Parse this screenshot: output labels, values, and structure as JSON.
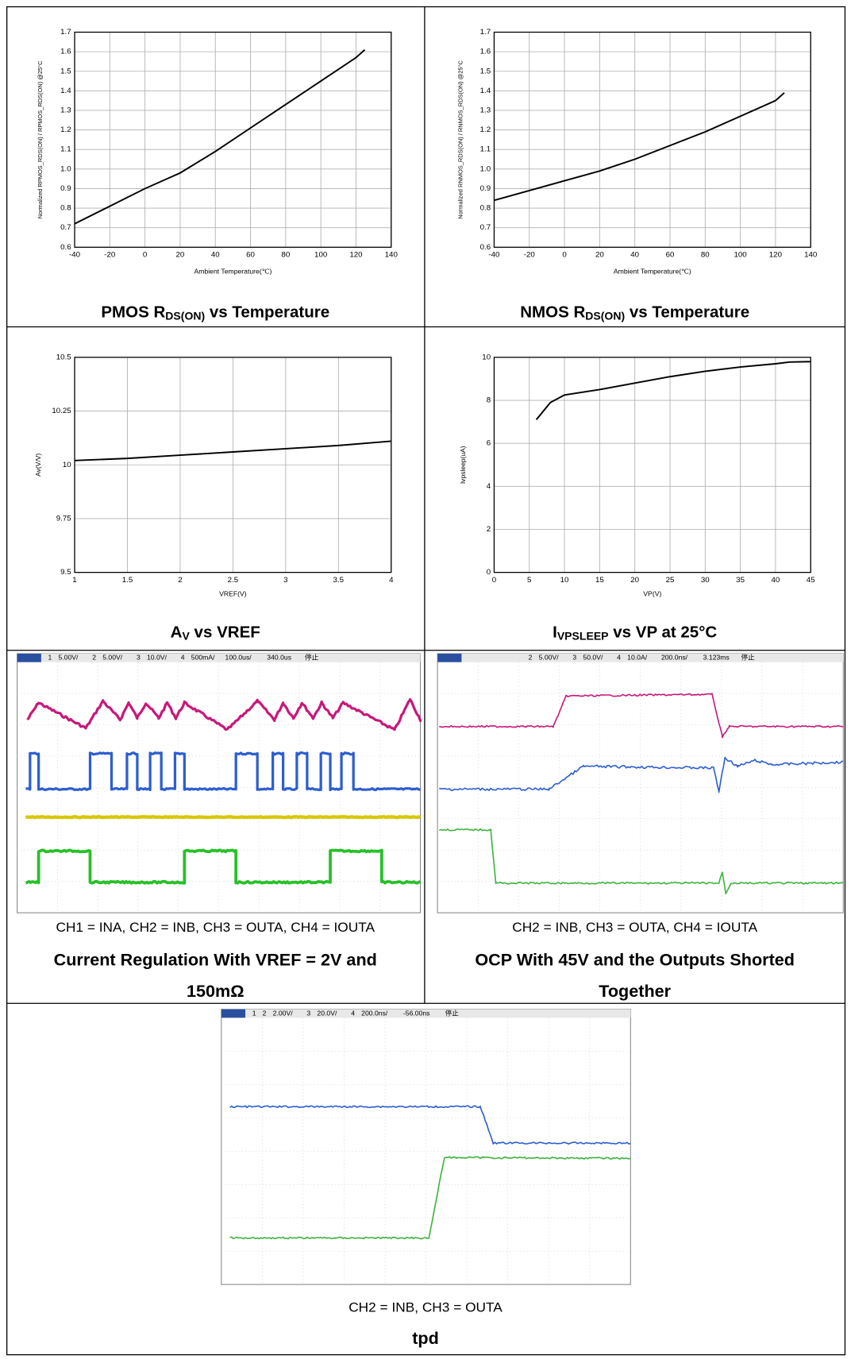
{
  "chart_data": [
    {
      "type": "line",
      "title": [
        "PMOS R",
        "DS(ON)",
        " vs Temperature"
      ],
      "ylabel": "Normalized RPMOS_RDS(ON) / RPMOS_RDS(ON) @25°C",
      "xlabel": "Ambient Temperature(℃)",
      "x": [
        -40,
        -20,
        0,
        20,
        40,
        60,
        80,
        100,
        120,
        125
      ],
      "values": [
        0.72,
        0.81,
        0.9,
        0.98,
        1.09,
        1.21,
        1.33,
        1.45,
        1.57,
        1.61
      ],
      "color": "#000000",
      "xlim": [
        -40,
        140
      ],
      "xticks": [
        -40,
        -20,
        0,
        20,
        40,
        60,
        80,
        100,
        120,
        140
      ],
      "ylim": [
        0.6,
        1.7
      ],
      "yticks": [
        0.6,
        0.7,
        0.8,
        0.9,
        {
          "value": 1,
          "label": "1.0"
        },
        1.1,
        1.2,
        1.3,
        1.4,
        1.5,
        1.6,
        1.7
      ],
      "grid": true
    },
    {
      "type": "line",
      "title": [
        "NMOS R",
        "DS(ON)",
        " vs Temperature"
      ],
      "ylabel": "Normalized RNMOS_RDS(ON) / RNMOS_RDS(ON) @25°C",
      "xlabel": "Ambient Temperature(℃)",
      "x": [
        -40,
        -20,
        0,
        20,
        40,
        60,
        80,
        100,
        120,
        125
      ],
      "values": [
        0.84,
        0.89,
        0.94,
        0.99,
        1.05,
        1.12,
        1.19,
        1.27,
        1.35,
        1.39
      ],
      "color": "#000000",
      "xlim": [
        -40,
        140
      ],
      "xticks": [
        -40,
        -20,
        0,
        20,
        40,
        60,
        80,
        100,
        120,
        140
      ],
      "ylim": [
        0.6,
        1.7
      ],
      "yticks": [
        0.6,
        0.7,
        0.8,
        0.9,
        {
          "value": 1,
          "label": "1.0"
        },
        1.1,
        1.2,
        1.3,
        1.4,
        1.5,
        1.6,
        1.7
      ],
      "grid": true
    },
    {
      "type": "line",
      "title": [
        "A",
        "V",
        " vs VREF"
      ],
      "ylabel": "Av(V/V)",
      "xlabel": "VREF(V)",
      "x": [
        1,
        1.5,
        2,
        2.5,
        3,
        3.5,
        4
      ],
      "values": [
        10.02,
        10.03,
        10.045,
        10.06,
        10.075,
        10.09,
        10.11
      ],
      "color": "#000000",
      "xlim": [
        1,
        4
      ],
      "xticks": [
        1,
        1.5,
        2,
        2.5,
        3,
        3.5,
        4
      ],
      "ylim": [
        9.5,
        10.5
      ],
      "yticks": [
        9.5,
        9.75,
        10,
        10.25,
        10.5
      ],
      "grid": true
    },
    {
      "type": "line",
      "title": [
        "I",
        "VPSLEEP",
        " vs VP at 25°C"
      ],
      "ylabel": "Ivpsleep(uA)",
      "xlabel": "VP(V)",
      "x": [
        6,
        8,
        10,
        15,
        20,
        25,
        30,
        35,
        40,
        42,
        45
      ],
      "values": [
        7.1,
        7.9,
        8.25,
        8.5,
        8.8,
        9.1,
        9.35,
        9.55,
        9.7,
        9.78,
        9.8
      ],
      "color": "#000000",
      "xlim": [
        0,
        45
      ],
      "xticks": [
        0,
        5,
        10,
        15,
        20,
        25,
        30,
        35,
        40,
        45
      ],
      "ylim": [
        0,
        10
      ],
      "yticks": [
        0,
        2,
        4,
        6,
        8,
        10
      ],
      "grid": true
    }
  ],
  "scope_panels": [
    {
      "header": [
        "1",
        "5.00V/",
        "2",
        "5.00V/",
        "3",
        "10.0V/",
        "4",
        "500mA/",
        "100.0us/",
        "340.0us",
        "停止"
      ],
      "caption": "CH1 = INA, CH2 = INB, CH3 = OUTA, CH4 = IOUTA",
      "title": [
        "Current Regulation With VREF = 2V and",
        "150mΩ"
      ]
    },
    {
      "header": [
        "2",
        "5.00V/",
        "3",
        "50.0V/",
        "4",
        "10.0A/",
        "200.0ns/",
        "3.123ms",
        "停止"
      ],
      "caption": "CH2 = INB, CH3 = OUTA, CH4 = IOUTA",
      "title": [
        "OCP With 45V and the Outputs Shorted",
        "Together"
      ]
    },
    {
      "header": [
        "1",
        "2",
        "2.00V/",
        "3",
        "20.0V/",
        "4",
        "200.0ns/",
        "-56.00ns",
        "停止"
      ],
      "caption": "CH2 = INB, CH3 = OUTA",
      "title": [
        "tpd"
      ]
    }
  ]
}
